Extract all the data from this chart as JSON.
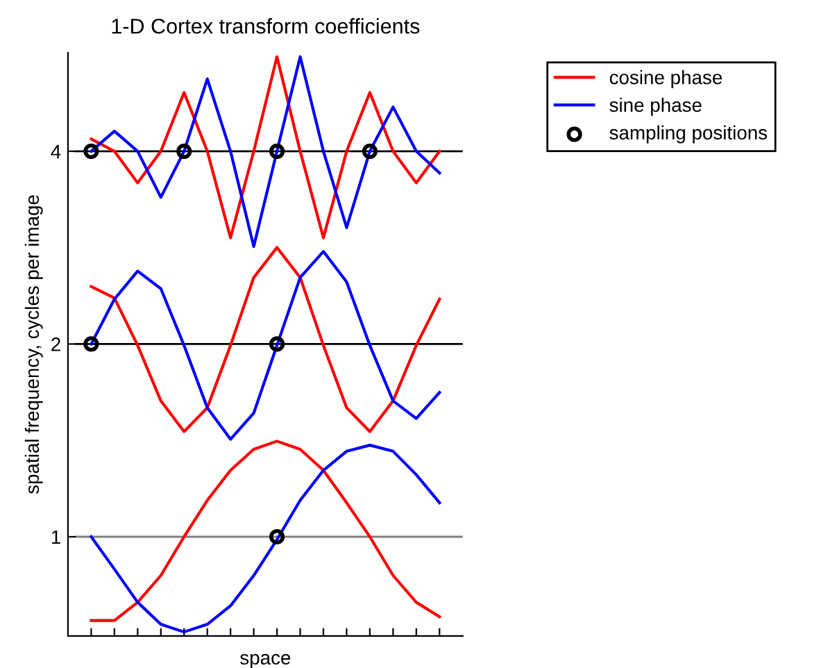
{
  "chart_data": {
    "type": "line",
    "title": "1-D Cortex transform coefficients",
    "xlabel": "space",
    "ylabel": "spatial frequency, cycles per image",
    "categories": [
      null,
      null,
      null,
      null,
      null,
      null,
      null,
      null,
      null,
      null,
      null,
      null,
      null,
      null,
      null,
      null
    ],
    "log": "y",
    "ylim": [
      0.7,
      5.7
    ],
    "yticks": [
      1,
      2,
      4
    ],
    "series": [
      {
        "name": "cosine phase",
        "color": "#ff0000",
        "values": [
          0.74,
          0.74,
          0.79,
          0.87,
          1.0,
          1.14,
          1.27,
          1.37,
          1.41,
          1.37,
          1.27,
          1.13,
          1.0,
          0.87,
          0.79,
          0.75
        ]
      },
      {
        "name": "sine phase",
        "color": "#0000ff",
        "values": [
          1.0,
          0.89,
          0.79,
          0.73,
          0.71,
          0.73,
          0.78,
          0.87,
          0.99,
          1.14,
          1.27,
          1.36,
          1.39,
          1.36,
          1.25,
          1.13
        ]
      },
      {
        "color": "#ff0000",
        "values": [
          2.46,
          2.36,
          1.99,
          1.63,
          1.46,
          1.59,
          1.99,
          2.54,
          2.83,
          2.54,
          1.99,
          1.59,
          1.46,
          1.63,
          1.99,
          2.35
        ]
      },
      {
        "color": "#0000ff",
        "values": [
          2.0,
          2.35,
          2.6,
          2.44,
          1.99,
          1.59,
          1.42,
          1.56,
          1.99,
          2.54,
          2.79,
          2.5,
          1.99,
          1.63,
          1.53,
          1.68
        ]
      },
      {
        "color": "#ff0000",
        "values": [
          4.18,
          4.0,
          3.57,
          4.0,
          4.94,
          4.0,
          2.93,
          4.0,
          5.62,
          4.0,
          2.93,
          4.0,
          4.94,
          4.0,
          3.57,
          4.0
        ]
      },
      {
        "color": "#0000ff",
        "values": [
          4.0,
          4.3,
          4.0,
          3.39,
          4.0,
          5.19,
          4.0,
          2.84,
          4.0,
          5.62,
          4.0,
          3.04,
          4.0,
          4.69,
          4.0,
          3.7
        ]
      },
      {
        "name": "sampling positions",
        "type": "scatter",
        "marker": "circle",
        "color": "#000000",
        "values": [
          4,
          null,
          null,
          null,
          4,
          null,
          null,
          null,
          4,
          null,
          null,
          null,
          4,
          null,
          null,
          null
        ]
      },
      {
        "type": "scatter",
        "marker": "circle",
        "color": "#000000",
        "values": [
          2,
          null,
          null,
          null,
          null,
          null,
          null,
          null,
          2,
          null,
          null,
          null,
          null,
          null,
          null,
          null
        ]
      },
      {
        "type": "scatter",
        "marker": "circle",
        "color": "#000000",
        "values": [
          null,
          null,
          null,
          null,
          null,
          null,
          null,
          null,
          1,
          null,
          null,
          null,
          null,
          null,
          null,
          null
        ]
      }
    ],
    "ref_lines": [
      {
        "axis": "y",
        "value": 1,
        "color": "#808080"
      },
      {
        "axis": "y",
        "value": 2,
        "color": "#000000"
      },
      {
        "axis": "y",
        "value": 4,
        "color": "#000000"
      }
    ],
    "legend": "top right",
    "grid": false
  }
}
